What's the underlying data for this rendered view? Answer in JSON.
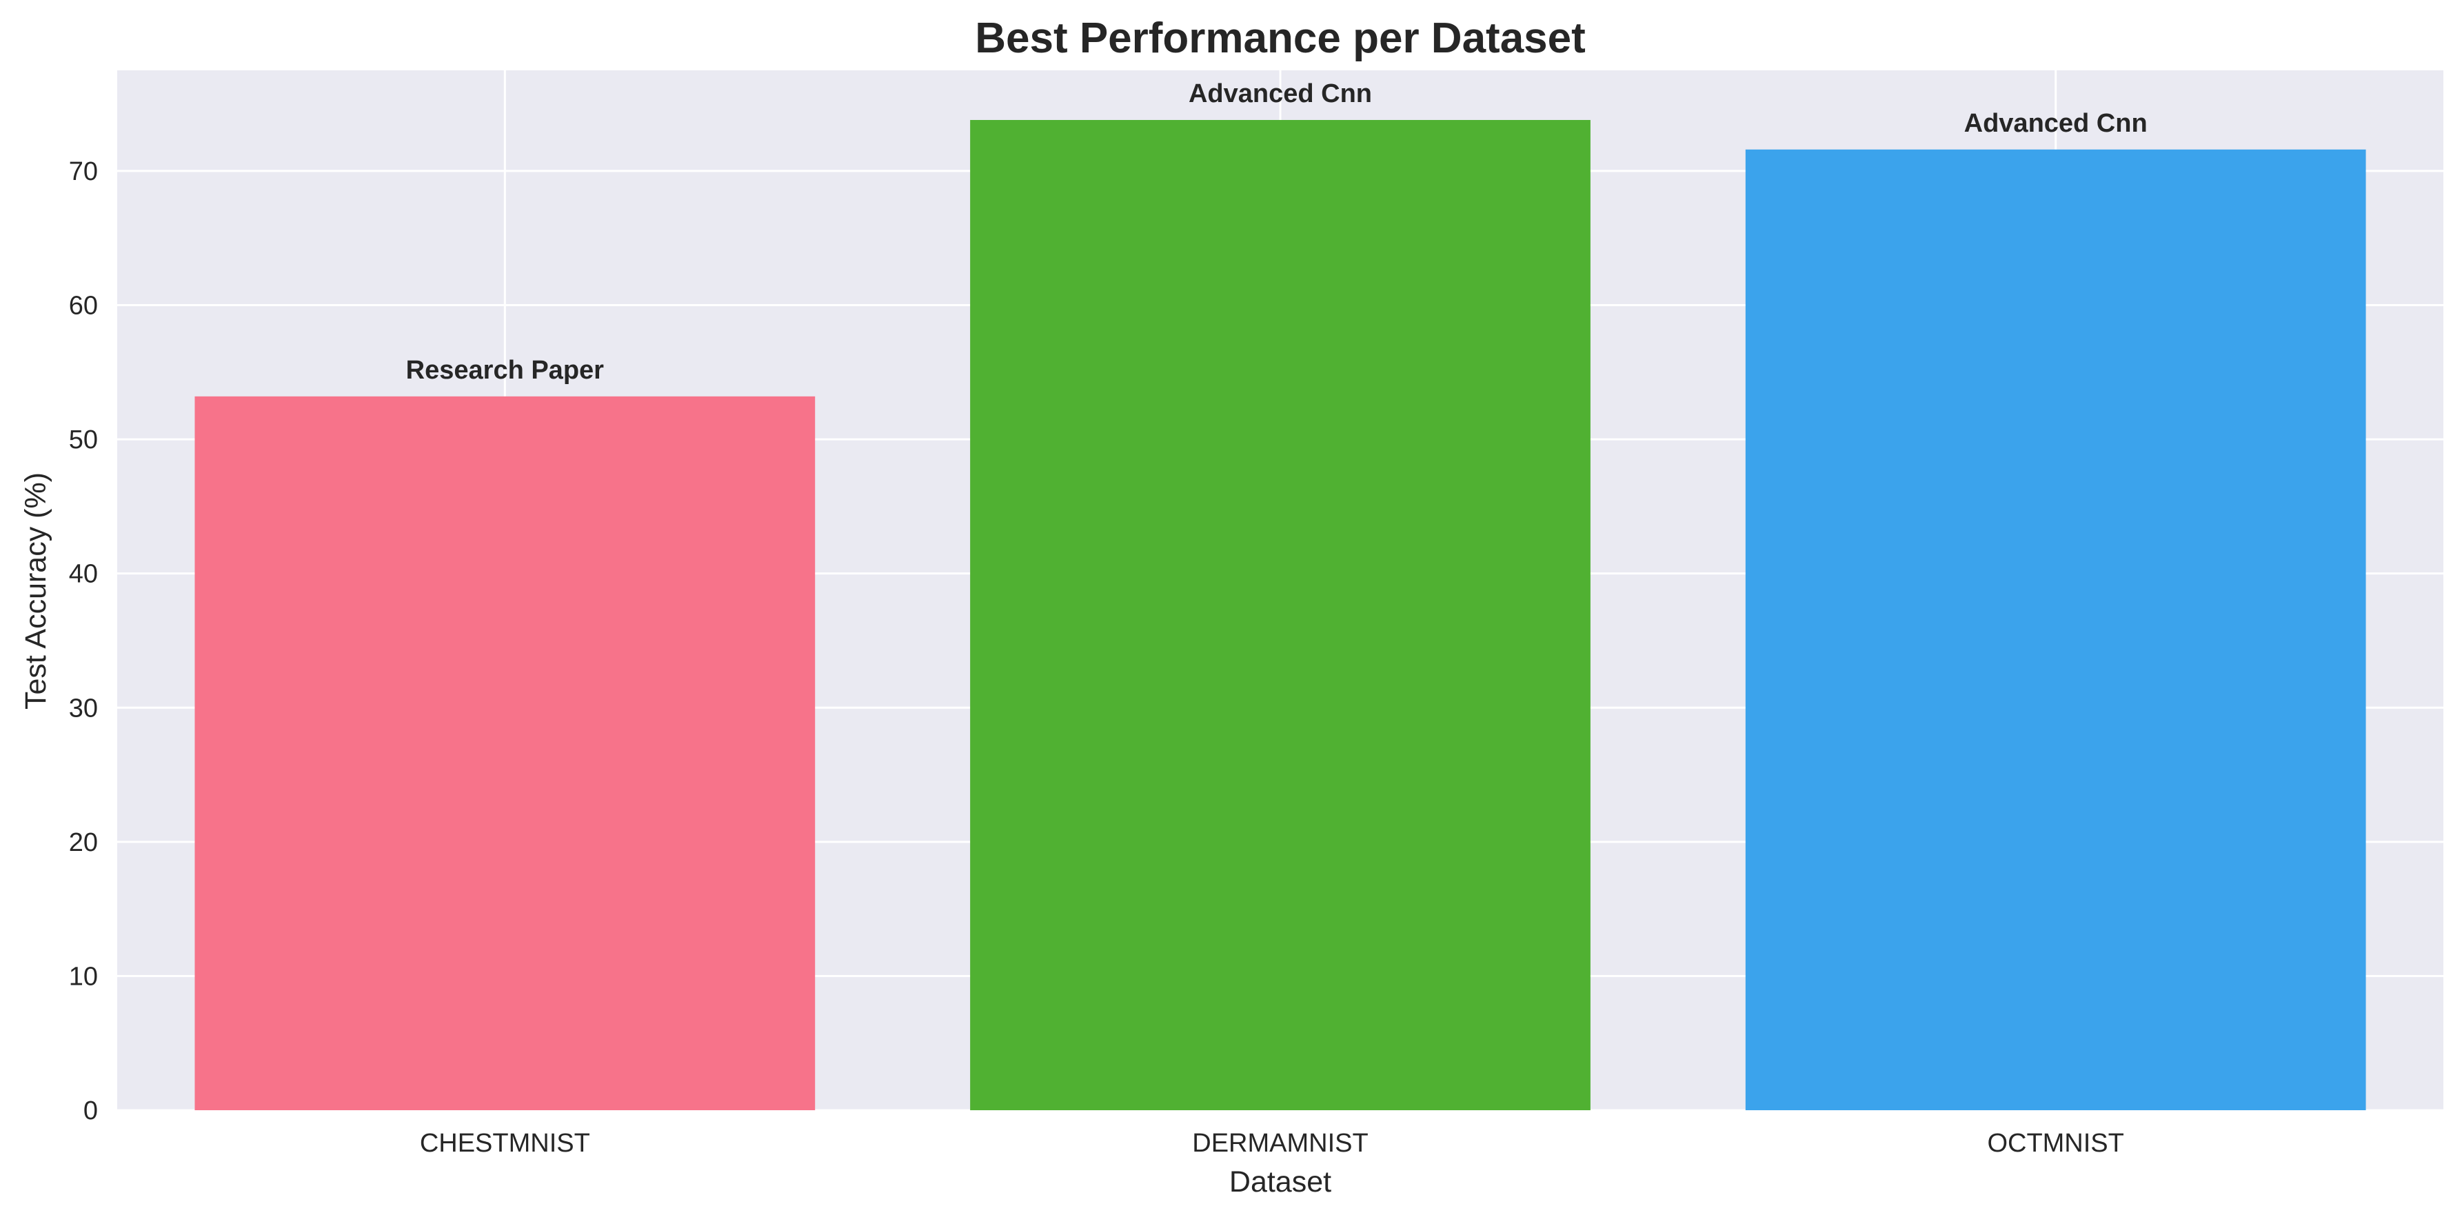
{
  "chart_data": {
    "type": "bar",
    "title": "Best Performance per Dataset",
    "xlabel": "Dataset",
    "ylabel": "Test Accuracy (%)",
    "categories": [
      "CHESTMNIST",
      "DERMAMNIST",
      "OCTMNIST"
    ],
    "values": [
      53.2,
      73.8,
      71.6
    ],
    "bar_labels": [
      "Research Paper",
      "Advanced Cnn",
      "Advanced Cnn"
    ],
    "colors": [
      "#f7738a",
      "#50b132",
      "#3ba3ec"
    ],
    "ylim": [
      0,
      77.5
    ],
    "yticks": [
      0,
      10,
      20,
      30,
      40,
      50,
      60,
      70
    ],
    "grid": true,
    "background": "#eaeaf2",
    "grid_color": "#ffffff",
    "text_color": "#262626"
  }
}
